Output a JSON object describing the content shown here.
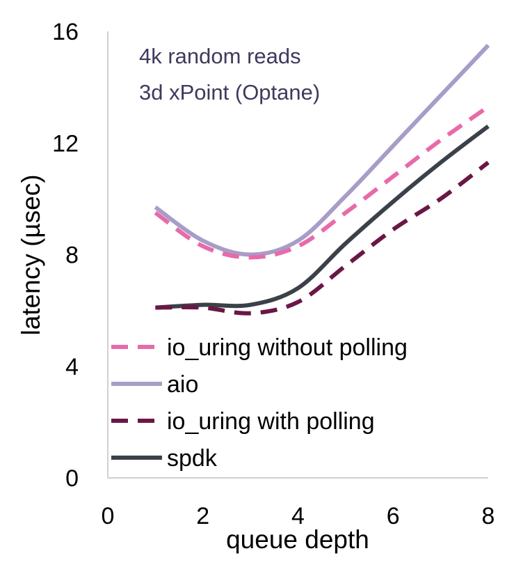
{
  "chart_data": {
    "type": "line",
    "xlabel": "queue depth",
    "ylabel": "latency (µsec)",
    "annotation": [
      "4k random reads",
      "3d xPoint (Optane)"
    ],
    "xlim": [
      0,
      8
    ],
    "ylim": [
      0,
      16
    ],
    "xticks": [
      0,
      2,
      4,
      6,
      8
    ],
    "yticks": [
      0,
      4,
      8,
      12,
      16
    ],
    "x_tick_labels": [
      "0",
      "2",
      "4",
      "6",
      "8"
    ],
    "y_tick_labels": [
      "0",
      "4",
      "8",
      "12",
      "16"
    ],
    "grid": false,
    "legend_position": "bottom-left",
    "series": [
      {
        "name": "io_uring without polling",
        "color": "#e86aa8",
        "dash": true,
        "x": [
          1,
          2,
          3,
          4,
          5,
          6,
          7,
          8
        ],
        "y": [
          9.5,
          8.3,
          7.9,
          8.3,
          9.5,
          10.8,
          12.1,
          13.3
        ]
      },
      {
        "name": "aio",
        "color": "#a89cc8",
        "dash": false,
        "x": [
          1,
          2,
          3,
          4,
          5,
          6,
          7,
          8
        ],
        "y": [
          9.7,
          8.5,
          8.0,
          8.5,
          10.1,
          11.9,
          13.7,
          15.5
        ]
      },
      {
        "name": "io_uring with polling",
        "color": "#6b1745",
        "dash": true,
        "x": [
          1,
          2,
          3,
          4,
          5,
          6,
          7,
          8
        ],
        "y": [
          6.1,
          6.1,
          5.9,
          6.3,
          7.6,
          8.9,
          10.0,
          11.3
        ]
      },
      {
        "name": "spdk",
        "color": "#3b4148",
        "dash": false,
        "x": [
          1,
          2,
          3,
          4,
          5,
          6,
          7,
          8
        ],
        "y": [
          6.1,
          6.2,
          6.2,
          6.8,
          8.4,
          9.9,
          11.3,
          12.6
        ]
      }
    ]
  }
}
